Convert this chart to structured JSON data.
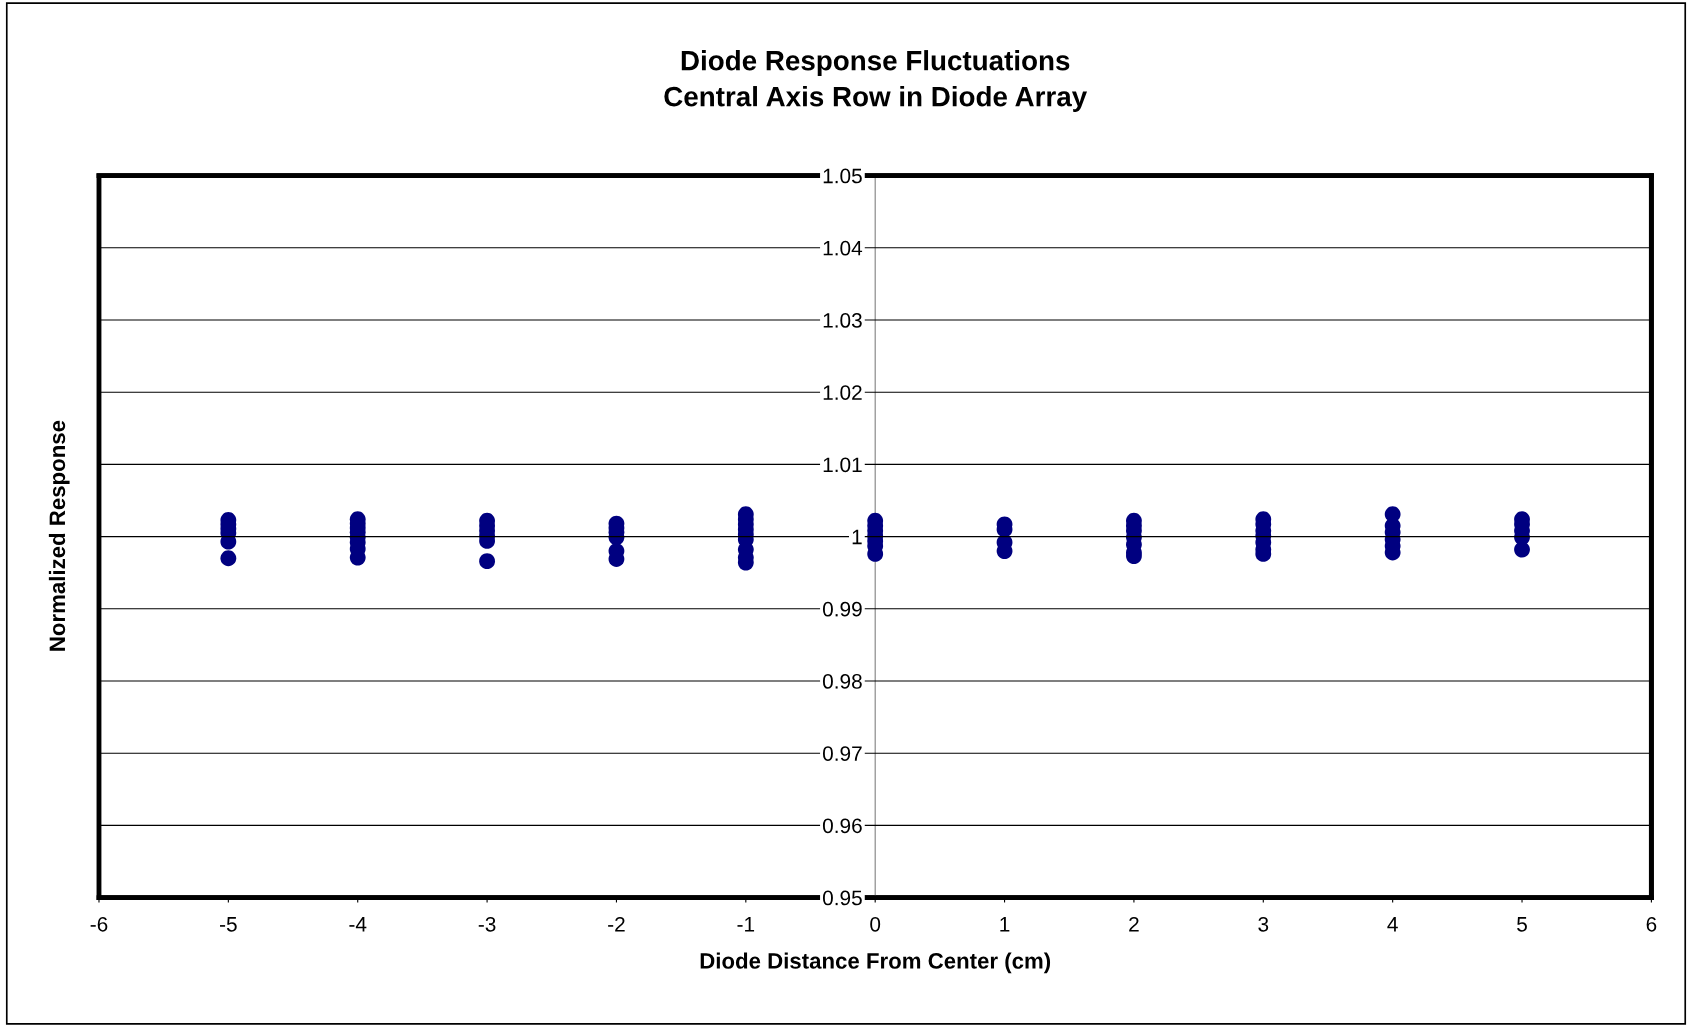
{
  "chart_data": {
    "type": "scatter",
    "title": "Diode Response Fluctuations\nCentral Axis Row in Diode Array",
    "xlabel": "Diode Distance From Center (cm)",
    "ylabel": "Normalized Response",
    "series": [
      {
        "color": "#000080",
        "x": [
          -5,
          -5,
          -5,
          -5,
          -5,
          -5,
          -4,
          -4,
          -4,
          -4,
          -4,
          -4,
          -4,
          -4,
          -3,
          -3,
          -3,
          -3,
          -3,
          -3,
          -2,
          -2,
          -2,
          -2,
          -2,
          -2,
          -1,
          -1,
          -1,
          -1,
          -1,
          -1,
          -1,
          -1,
          -1,
          0,
          0,
          0,
          0,
          0,
          0,
          0,
          1,
          1,
          1,
          1,
          2,
          2,
          2,
          2,
          2,
          2,
          2,
          3,
          3,
          3,
          3,
          3,
          3,
          3,
          4,
          4,
          4,
          4,
          4,
          4,
          5,
          5,
          5,
          5,
          5
        ],
        "values": [
          1.0023,
          1.0017,
          1.0011,
          1.0005,
          0.9993,
          0.997,
          1.0024,
          1.0018,
          1.0012,
          1.0006,
          0.9999,
          0.9992,
          0.9983,
          0.9971,
          1.0022,
          1.0015,
          1.0008,
          1.0001,
          0.9994,
          0.9966,
          1.0018,
          1.0012,
          1.0006,
          0.9999,
          0.998,
          0.9969,
          1.0031,
          1.0024,
          1.0017,
          1.001,
          1.0003,
          0.9996,
          0.9982,
          0.9971,
          0.9964,
          1.0022,
          1.0015,
          1.0008,
          1.0001,
          0.9994,
          0.9987,
          0.9976,
          1.0017,
          1.001,
          0.9992,
          0.998,
          1.0022,
          1.0015,
          1.0008,
          0.9999,
          0.9989,
          0.9978,
          0.9973,
          1.0024,
          1.0017,
          1.0008,
          1.0001,
          0.9992,
          0.9982,
          0.9976,
          1.0031,
          1.0015,
          1.0006,
          0.9996,
          0.9987,
          0.9978,
          1.0024,
          1.0017,
          1.0008,
          0.9999,
          0.9982
        ]
      }
    ],
    "xlim": [
      -6,
      6
    ],
    "xticks": [
      -6,
      -5,
      -4,
      -3,
      -2,
      -1,
      0,
      1,
      2,
      3,
      4,
      5,
      6
    ],
    "ylim": [
      0.95,
      1.05
    ],
    "yticks": [
      0.95,
      0.96,
      0.97,
      0.98,
      0.99,
      1,
      1.01,
      1.02,
      1.03,
      1.04,
      1.05
    ],
    "grid": "y",
    "marker": "circle",
    "legend": false
  }
}
